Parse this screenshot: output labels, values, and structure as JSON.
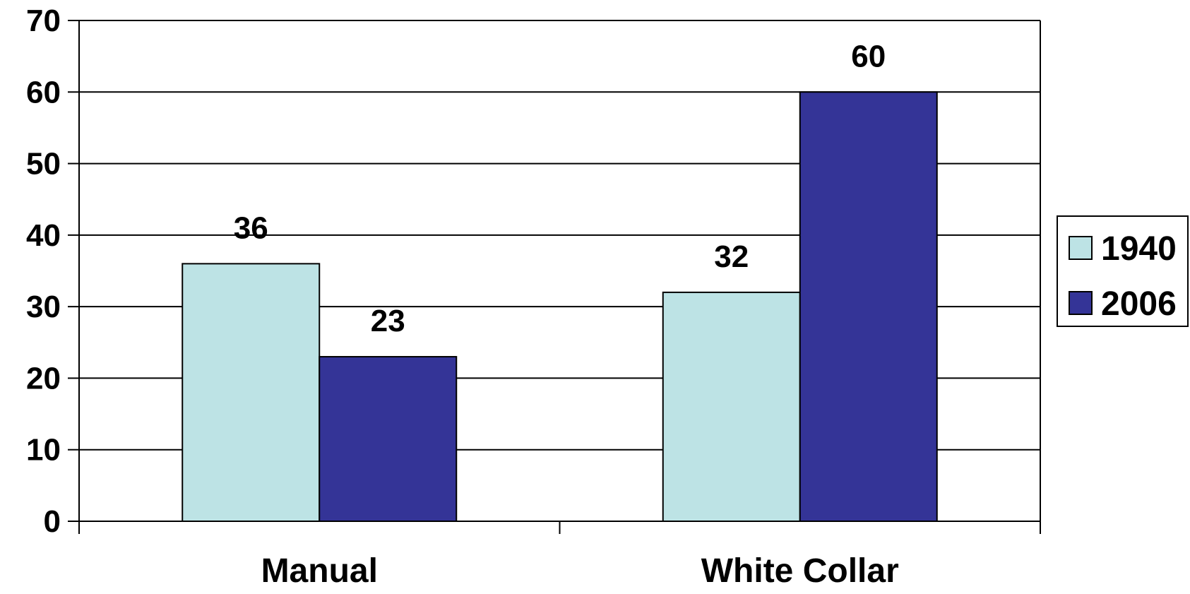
{
  "chart_data": {
    "type": "bar",
    "title": "",
    "xlabel": "",
    "ylabel": "",
    "categories": [
      "Manual",
      "White Collar"
    ],
    "series": [
      {
        "name": "1940",
        "values": [
          36,
          32
        ],
        "color": "#bde3e5"
      },
      {
        "name": "2006",
        "values": [
          23,
          60
        ],
        "color": "#343497"
      }
    ],
    "ylim": [
      0,
      70
    ],
    "yticks": [
      0,
      10,
      20,
      30,
      40,
      50,
      60,
      70
    ],
    "ytick_labels": [
      "0",
      "10",
      "20",
      "30",
      "40",
      "50",
      "60",
      "70"
    ],
    "data_labels": [
      [
        "36",
        "32"
      ],
      [
        "23",
        "60"
      ]
    ],
    "grid": true,
    "legend": "right"
  }
}
